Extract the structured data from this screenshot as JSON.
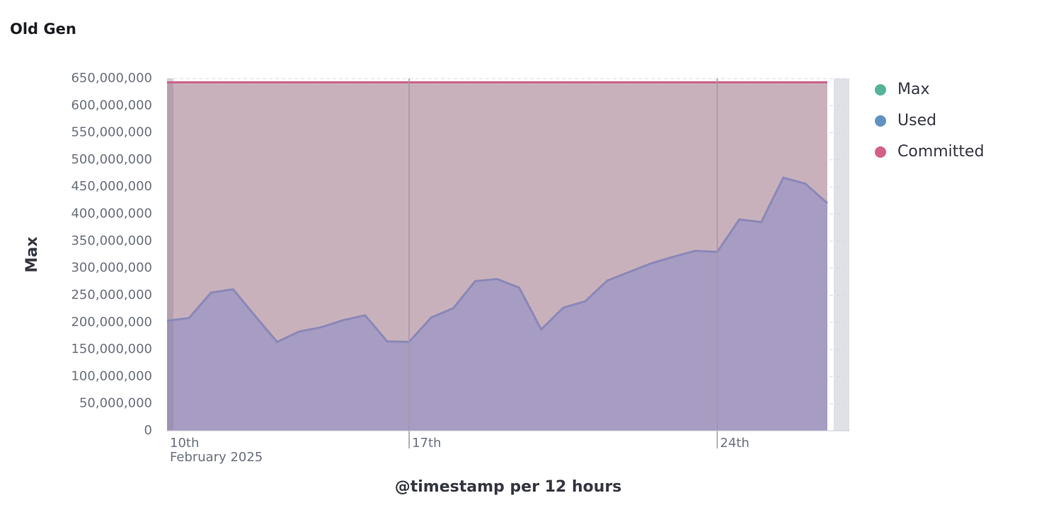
{
  "chart_data": {
    "type": "line",
    "title": "Old Gen",
    "y_label": "Max",
    "x_label": "@timestamp per 12 hours",
    "x_start_label": "10th",
    "x_period_label": "February 2025",
    "x": [
      11.5,
      12,
      12.5,
      13,
      13.5,
      14,
      14.5,
      15,
      15.5,
      16,
      16.5,
      17,
      17.5,
      18,
      18.5,
      19,
      19.5,
      20,
      20.5,
      21,
      21.5,
      22,
      22.5,
      23,
      23.5,
      24,
      24.5,
      25,
      25.5,
      26,
      26.5
    ],
    "series": [
      {
        "name": "Max",
        "color": "#54b399",
        "values": [
          643000000,
          643000000,
          643000000,
          643000000,
          643000000,
          643000000,
          643000000,
          643000000,
          643000000,
          643000000,
          643000000,
          643000000,
          643000000,
          643000000,
          643000000,
          643000000,
          643000000,
          643000000,
          643000000,
          643000000,
          643000000,
          643000000,
          643000000,
          643000000,
          643000000,
          643000000,
          643000000,
          643000000,
          643000000,
          643000000,
          643000000
        ]
      },
      {
        "name": "Used",
        "color": "#6092c0",
        "values": [
          203000000,
          208000000,
          255000000,
          261000000,
          212000000,
          164000000,
          183000000,
          191000000,
          204000000,
          213000000,
          165000000,
          164000000,
          209000000,
          226000000,
          276000000,
          280000000,
          264000000,
          187000000,
          227000000,
          239000000,
          277000000,
          293000000,
          309000000,
          321000000,
          332000000,
          330000000,
          390000000,
          385000000,
          467000000,
          456000000,
          420000000
        ]
      },
      {
        "name": "Committed",
        "color": "#d36086",
        "values": [
          643000000,
          643000000,
          643000000,
          643000000,
          643000000,
          643000000,
          643000000,
          643000000,
          643000000,
          643000000,
          643000000,
          643000000,
          643000000,
          643000000,
          643000000,
          643000000,
          643000000,
          643000000,
          643000000,
          643000000,
          643000000,
          643000000,
          643000000,
          643000000,
          643000000,
          643000000,
          643000000,
          643000000,
          643000000,
          643000000,
          643000000
        ]
      }
    ],
    "xlim": [
      11.5,
      27
    ],
    "xticks": [
      {
        "value": 17,
        "label": "17th"
      },
      {
        "value": 24,
        "label": "24th"
      }
    ],
    "ylim": [
      0,
      650000000
    ],
    "yticks": [
      0,
      {
        "value": 50000000,
        "label": "50,000,000"
      },
      {
        "value": 100000000,
        "label": "100,000,000"
      },
      {
        "value": 150000000,
        "label": "150,000,000"
      },
      {
        "value": 200000000,
        "label": "200,000,000"
      },
      {
        "value": 250000000,
        "label": "250,000,000"
      },
      {
        "value": 300000000,
        "label": "300,000,000"
      },
      {
        "value": 350000000,
        "label": "350,000,000"
      },
      {
        "value": 400000000,
        "label": "400,000,000"
      },
      {
        "value": 450000000,
        "label": "450,000,000"
      },
      {
        "value": 500000000,
        "label": "500,000,000"
      },
      {
        "value": 550000000,
        "label": "550,000,000"
      },
      {
        "value": 600000000,
        "label": "600,000,000"
      },
      {
        "value": 650000000,
        "label": "650,000,000"
      }
    ],
    "grid": true,
    "legend": "right"
  }
}
